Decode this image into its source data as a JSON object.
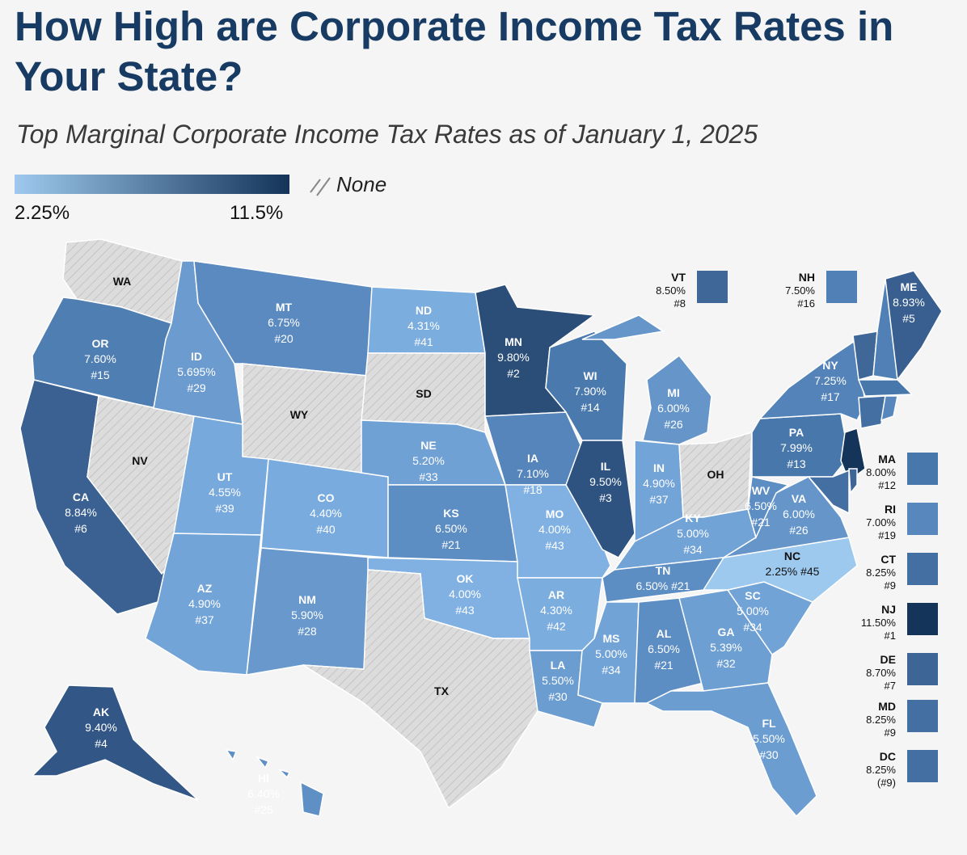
{
  "title": "How High are Corporate Income Tax Rates in Your State?",
  "subtitle": "Top Marginal Corporate Income Tax Rates as of January 1, 2025",
  "legend": {
    "min_label": "2.25%",
    "max_label": "11.5%",
    "none_label": "None",
    "min_color": "#9ec9ee",
    "max_color": "#143459",
    "none_color": "#d9d9d9"
  },
  "states": {
    "WA": {
      "abbr": "WA",
      "rate": "",
      "rank": "",
      "color": "#d9d9d9",
      "none": true
    },
    "OR": {
      "abbr": "OR",
      "rate": "7.60%",
      "rank": "#15",
      "color": "#4f7eb2"
    },
    "CA": {
      "abbr": "CA",
      "rate": "8.84%",
      "rank": "#6",
      "color": "#3a6191"
    },
    "NV": {
      "abbr": "NV",
      "rate": "",
      "rank": "",
      "color": "#d9d9d9",
      "none": true
    },
    "ID": {
      "abbr": "ID",
      "rate": "5.695%",
      "rank": "#29",
      "color": "#6b9bcf"
    },
    "MT": {
      "abbr": "MT",
      "rate": "6.75%",
      "rank": "#20",
      "color": "#5a8ac0"
    },
    "WY": {
      "abbr": "WY",
      "rate": "",
      "rank": "",
      "color": "#d9d9d9",
      "none": true
    },
    "UT": {
      "abbr": "UT",
      "rate": "4.55%",
      "rank": "#39",
      "color": "#78a9dd"
    },
    "AZ": {
      "abbr": "AZ",
      "rate": "4.90%",
      "rank": "#37",
      "color": "#73a4d8"
    },
    "CO": {
      "abbr": "CO",
      "rate": "4.40%",
      "rank": "#40",
      "color": "#7aabde"
    },
    "NM": {
      "abbr": "NM",
      "rate": "5.90%",
      "rank": "#28",
      "color": "#6898cc"
    },
    "ND": {
      "abbr": "ND",
      "rate": "4.31%",
      "rank": "#41",
      "color": "#7caddf"
    },
    "SD": {
      "abbr": "SD",
      "rate": "",
      "rank": "",
      "color": "#d9d9d9",
      "none": true
    },
    "NE": {
      "abbr": "NE",
      "rate": "5.20%",
      "rank": "#33",
      "color": "#70a1d5"
    },
    "KS": {
      "abbr": "KS",
      "rate": "6.50%",
      "rank": "#21",
      "color": "#5c8dc3"
    },
    "OK": {
      "abbr": "OK",
      "rate": "4.00%",
      "rank": "#43",
      "color": "#80b1e2"
    },
    "TX": {
      "abbr": "TX",
      "rate": "",
      "rank": "",
      "color": "#d9d9d9",
      "none": true
    },
    "MN": {
      "abbr": "MN",
      "rate": "9.80%",
      "rank": "#2",
      "color": "#2b4e78"
    },
    "IA": {
      "abbr": "IA",
      "rate": "7.10%",
      "rank": "#18",
      "color": "#5585ba"
    },
    "MO": {
      "abbr": "MO",
      "rate": "4.00%",
      "rank": "#43",
      "color": "#80b1e2"
    },
    "AR": {
      "abbr": "AR",
      "rate": "4.30%",
      "rank": "#42",
      "color": "#7caddf"
    },
    "LA": {
      "abbr": "LA",
      "rate": "5.50%",
      "rank": "#30",
      "color": "#6c9dd1"
    },
    "WI": {
      "abbr": "WI",
      "rate": "7.90%",
      "rank": "#14",
      "color": "#4a79ad"
    },
    "IL": {
      "abbr": "IL",
      "rate": "9.50%",
      "rank": "#3",
      "color": "#2f5380"
    },
    "MI": {
      "abbr": "MI",
      "rate": "6.00%",
      "rank": "#26",
      "color": "#6595c9"
    },
    "IN": {
      "abbr": "IN",
      "rate": "4.90%",
      "rank": "#37",
      "color": "#73a4d8"
    },
    "OH": {
      "abbr": "OH",
      "rate": "",
      "rank": "",
      "color": "#d9d9d9",
      "none": true
    },
    "KY": {
      "abbr": "KY",
      "rate": "5.00%",
      "rank": "#34",
      "color": "#72a3d7"
    },
    "TN": {
      "abbr": "TN",
      "rate": "6.50%",
      "rank": "#21",
      "color": "#5c8dc3"
    },
    "MS": {
      "abbr": "MS",
      "rate": "5.00%",
      "rank": "#34",
      "color": "#72a3d7"
    },
    "AL": {
      "abbr": "AL",
      "rate": "6.50%",
      "rank": "#21",
      "color": "#5c8dc3"
    },
    "GA": {
      "abbr": "GA",
      "rate": "5.39%",
      "rank": "#32",
      "color": "#6e9fd3"
    },
    "FL": {
      "abbr": "FL",
      "rate": "5.50%",
      "rank": "#30",
      "color": "#6c9dd1"
    },
    "SC": {
      "abbr": "SC",
      "rate": "5.00%",
      "rank": "#34",
      "color": "#72a3d7"
    },
    "NC": {
      "abbr": "NC",
      "rate": "2.25%",
      "rank": "#45",
      "color": "#9ec9ee"
    },
    "VA": {
      "abbr": "VA",
      "rate": "6.00%",
      "rank": "#26",
      "color": "#6595c9"
    },
    "WV": {
      "abbr": "WV",
      "rate": "6.50%",
      "rank": "#21",
      "color": "#5c8dc3"
    },
    "PA": {
      "abbr": "PA",
      "rate": "7.99%",
      "rank": "#13",
      "color": "#4877ab"
    },
    "NY": {
      "abbr": "NY",
      "rate": "7.25%",
      "rank": "#17",
      "color": "#5383b8"
    },
    "ME": {
      "abbr": "ME",
      "rate": "8.93%",
      "rank": "#5",
      "color": "#385f8f"
    },
    "NJ": {
      "abbr": "NJ",
      "rate": "11.50%",
      "rank": "#1",
      "color": "#143459"
    },
    "AK": {
      "abbr": "AK",
      "rate": "9.40%",
      "rank": "#4",
      "color": "#325685"
    },
    "HI": {
      "abbr": "HI",
      "rate": "6.40%",
      "rank": "#25",
      "color": "#5e8fc5"
    }
  },
  "side_states": [
    {
      "abbr": "VT",
      "rate": "8.50%",
      "rank": "#8",
      "color": "#3f6899"
    },
    {
      "abbr": "NH",
      "rate": "7.50%",
      "rank": "#16",
      "color": "#5080b5"
    },
    {
      "abbr": "MA",
      "rate": "8.00%",
      "rank": "#12",
      "color": "#4877ab"
    },
    {
      "abbr": "RI",
      "rate": "7.00%",
      "rank": "#19",
      "color": "#5787bc"
    },
    {
      "abbr": "CT",
      "rate": "8.25%",
      "rank": "#9",
      "color": "#446fa2"
    },
    {
      "abbr": "NJ",
      "rate": "11.50%",
      "rank": "#1",
      "color": "#143459"
    },
    {
      "abbr": "DE",
      "rate": "8.70%",
      "rank": "#7",
      "color": "#3d6595"
    },
    {
      "abbr": "MD",
      "rate": "8.25%",
      "rank": "#9",
      "color": "#446fa2"
    },
    {
      "abbr": "DC",
      "rate": "8.25%",
      "rank": "(#9)",
      "color": "#446fa2"
    }
  ]
}
